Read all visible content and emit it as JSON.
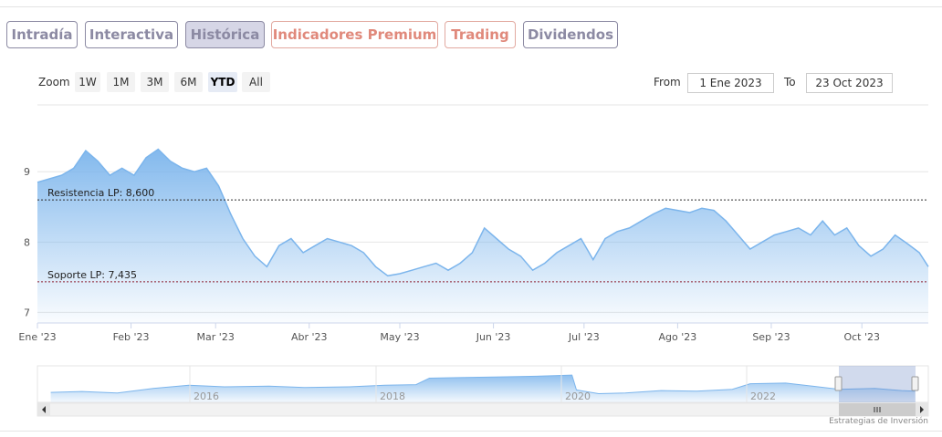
{
  "tabs": [
    {
      "label": "Intradía",
      "active": false,
      "style": "default"
    },
    {
      "label": "Interactiva",
      "active": false,
      "style": "default"
    },
    {
      "label": "Histórica",
      "active": true,
      "style": "default"
    },
    {
      "label": "Indicadores Premium",
      "active": false,
      "style": "premium"
    },
    {
      "label": "Trading",
      "active": false,
      "style": "premium"
    },
    {
      "label": "Dividendos",
      "active": false,
      "style": "default"
    }
  ],
  "range_selector": {
    "zoom_label": "Zoom",
    "buttons": [
      "1W",
      "1M",
      "3M",
      "6M",
      "YTD",
      "All"
    ],
    "selected": "YTD",
    "from_label": "From",
    "from_value": "1 Ene 2023",
    "to_label": "To",
    "to_value": "23 Oct 2023"
  },
  "colors": {
    "line": "#7cb5ec",
    "tab_default": "#8c8aa3",
    "tab_premium": "#e0897b",
    "resistance_line": "#2e2e2e",
    "support_line": "#8b1a2b"
  },
  "credits": "Estrategias de Inversión",
  "chart_data": {
    "type": "area",
    "title": "",
    "xlabel": "",
    "ylabel": "",
    "ylim": [
      6.85,
      9.95
    ],
    "y_ticks": [
      7,
      8,
      9
    ],
    "x_tick_labels": [
      "Ene '23",
      "Feb '23",
      "Mar '23",
      "Abr '23",
      "May '23",
      "Jun '23",
      "Jul '23",
      "Ago '23",
      "Sep '23",
      "Oct '23"
    ],
    "x_tick_dates": [
      "2023-01-01",
      "2023-02-01",
      "2023-03-01",
      "2023-04-01",
      "2023-05-01",
      "2023-06-01",
      "2023-07-01",
      "2023-08-01",
      "2023-09-01",
      "2023-10-01"
    ],
    "x_range": [
      "2023-01-01",
      "2023-10-23"
    ],
    "grid": true,
    "legend": "none",
    "series": [
      {
        "x": [
          "2023-01-01",
          "2023-01-05",
          "2023-01-09",
          "2023-01-13",
          "2023-01-17",
          "2023-01-21",
          "2023-01-25",
          "2023-01-29",
          "2023-02-02",
          "2023-02-06",
          "2023-02-10",
          "2023-02-14",
          "2023-02-18",
          "2023-02-22",
          "2023-02-26",
          "2023-03-02",
          "2023-03-06",
          "2023-03-10",
          "2023-03-14",
          "2023-03-18",
          "2023-03-22",
          "2023-03-26",
          "2023-03-30",
          "2023-04-03",
          "2023-04-07",
          "2023-04-11",
          "2023-04-15",
          "2023-04-19",
          "2023-04-23",
          "2023-04-27",
          "2023-05-01",
          "2023-05-05",
          "2023-05-09",
          "2023-05-13",
          "2023-05-17",
          "2023-05-21",
          "2023-05-25",
          "2023-05-29",
          "2023-06-02",
          "2023-06-06",
          "2023-06-10",
          "2023-06-14",
          "2023-06-18",
          "2023-06-22",
          "2023-06-26",
          "2023-06-30",
          "2023-07-04",
          "2023-07-08",
          "2023-07-12",
          "2023-07-16",
          "2023-07-20",
          "2023-07-24",
          "2023-07-28",
          "2023-08-01",
          "2023-08-05",
          "2023-08-09",
          "2023-08-13",
          "2023-08-17",
          "2023-08-21",
          "2023-08-25",
          "2023-08-29",
          "2023-09-02",
          "2023-09-06",
          "2023-09-10",
          "2023-09-14",
          "2023-09-18",
          "2023-09-22",
          "2023-09-26",
          "2023-09-30",
          "2023-10-04",
          "2023-10-08",
          "2023-10-12",
          "2023-10-16",
          "2023-10-20",
          "2023-10-23"
        ],
        "y": [
          8.85,
          8.9,
          8.95,
          9.05,
          9.3,
          9.15,
          8.95,
          9.05,
          8.95,
          9.2,
          9.32,
          9.15,
          9.05,
          9.0,
          9.05,
          8.8,
          8.4,
          8.05,
          7.8,
          7.65,
          7.95,
          8.05,
          7.85,
          7.95,
          8.05,
          8.0,
          7.95,
          7.85,
          7.65,
          7.52,
          7.55,
          7.6,
          7.65,
          7.7,
          7.6,
          7.7,
          7.85,
          8.2,
          8.05,
          7.9,
          7.8,
          7.6,
          7.7,
          7.85,
          7.95,
          8.05,
          7.75,
          8.05,
          8.15,
          8.2,
          8.3,
          8.4,
          8.48,
          8.45,
          8.42,
          8.48,
          8.45,
          8.3,
          8.1,
          7.9,
          8.0,
          8.1,
          8.15,
          8.2,
          8.1,
          8.3,
          8.1,
          8.2,
          7.95,
          7.8,
          7.9,
          8.1,
          7.98,
          7.85,
          7.65
        ]
      }
    ],
    "plot_lines": [
      {
        "label": "Resistencia LP: 8,600",
        "value": 8.6
      },
      {
        "label": "Soporte LP: 7,435",
        "value": 7.435
      }
    ],
    "navigator": {
      "year_labels": [
        "2016",
        "2018",
        "2020",
        "2022"
      ]
    }
  }
}
